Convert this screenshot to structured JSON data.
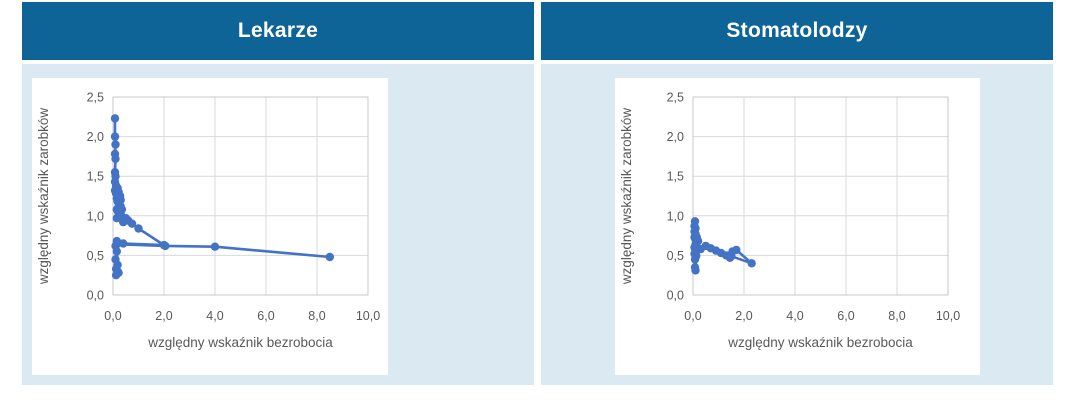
{
  "page": {
    "header_background": "#0e6496",
    "header_text_color": "#ffffff",
    "cell_background": "#dbe9f2",
    "panel_background": "#ffffff",
    "grid_color": "#d9d9d9",
    "plot_border_color": "#c9c9c9",
    "tick_color": "#595959",
    "axis_title_color": "#595959"
  },
  "panels": [
    {
      "title": "Lekarze"
    },
    {
      "title": "Stomatolodzy"
    }
  ],
  "chart_data": [
    {
      "type": "line",
      "title": "Lekarze",
      "xlabel": "względny wskaźnik bezrobocia",
      "ylabel": "względny wskaźnik zarobków",
      "xlim": [
        0,
        10
      ],
      "ylim": [
        0,
        2.5
      ],
      "x_tick_values": [
        0,
        2,
        4,
        6,
        8,
        10
      ],
      "x_ticks": [
        "0,0",
        "2,0",
        "4,0",
        "6,0",
        "8,0",
        "10,0"
      ],
      "y_tick_values": [
        0,
        0.5,
        1.0,
        1.5,
        2.0,
        2.5
      ],
      "y_ticks": [
        "0,0",
        "0,5",
        "1,0",
        "1,5",
        "2,0",
        "2,5"
      ],
      "grid": true,
      "legend": "none",
      "series_color": "#4472c4",
      "points": [
        [
          0.08,
          2.23
        ],
        [
          0.08,
          2.0
        ],
        [
          0.1,
          1.9
        ],
        [
          0.08,
          1.78
        ],
        [
          0.1,
          1.72
        ],
        [
          0.08,
          1.55
        ],
        [
          0.1,
          1.5
        ],
        [
          0.08,
          1.43
        ],
        [
          0.12,
          1.38
        ],
        [
          0.08,
          1.32
        ],
        [
          0.18,
          1.35
        ],
        [
          0.12,
          1.28
        ],
        [
          0.22,
          1.3
        ],
        [
          0.15,
          1.22
        ],
        [
          0.28,
          1.25
        ],
        [
          0.18,
          1.18
        ],
        [
          0.3,
          1.2
        ],
        [
          0.22,
          1.12
        ],
        [
          0.15,
          1.08
        ],
        [
          0.3,
          1.12
        ],
        [
          0.2,
          1.05
        ],
        [
          0.35,
          1.08
        ],
        [
          0.25,
          1.0
        ],
        [
          0.15,
          0.97
        ],
        [
          0.3,
          1.02
        ],
        [
          0.5,
          0.97
        ],
        [
          0.4,
          0.92
        ],
        [
          0.6,
          0.94
        ],
        [
          0.75,
          0.9
        ],
        [
          1.0,
          0.84
        ],
        [
          2.0,
          0.63
        ],
        [
          0.4,
          0.65
        ],
        [
          0.15,
          0.68
        ],
        [
          0.1,
          0.62
        ],
        [
          0.15,
          0.55
        ],
        [
          0.1,
          0.45
        ],
        [
          0.18,
          0.38
        ],
        [
          0.12,
          0.33
        ],
        [
          0.22,
          0.28
        ],
        [
          0.12,
          0.25
        ],
        [
          0.18,
          0.3
        ],
        [
          0.15,
          0.64
        ],
        [
          2.05,
          0.62
        ],
        [
          4.0,
          0.61
        ],
        [
          8.5,
          0.48
        ]
      ]
    },
    {
      "type": "line",
      "title": "Stomatolodzy",
      "xlabel": "względny wskaźnik bezrobocia",
      "ylabel": "względny wskaźnik zarobków",
      "xlim": [
        0,
        10
      ],
      "ylim": [
        0,
        2.5
      ],
      "x_tick_values": [
        0,
        2,
        4,
        6,
        8,
        10
      ],
      "x_ticks": [
        "0,0",
        "2,0",
        "4,0",
        "6,0",
        "8,0",
        "10,0"
      ],
      "y_tick_values": [
        0,
        0.5,
        1.0,
        1.5,
        2.0,
        2.5
      ],
      "y_ticks": [
        "0,0",
        "0,5",
        "1,0",
        "1,5",
        "2,0",
        "2,5"
      ],
      "grid": true,
      "legend": "none",
      "series_color": "#4472c4",
      "points": [
        [
          0.08,
          0.93
        ],
        [
          0.06,
          0.87
        ],
        [
          0.1,
          0.84
        ],
        [
          0.06,
          0.8
        ],
        [
          0.1,
          0.77
        ],
        [
          0.06,
          0.73
        ],
        [
          0.1,
          0.7
        ],
        [
          0.15,
          0.73
        ],
        [
          0.2,
          0.68
        ],
        [
          0.1,
          0.64
        ],
        [
          0.06,
          0.6
        ],
        [
          0.1,
          0.56
        ],
        [
          0.06,
          0.52
        ],
        [
          0.12,
          0.49
        ],
        [
          0.08,
          0.45
        ],
        [
          0.08,
          0.35
        ],
        [
          0.1,
          0.31
        ],
        [
          0.12,
          0.5
        ],
        [
          0.3,
          0.58
        ],
        [
          0.5,
          0.62
        ],
        [
          0.7,
          0.59
        ],
        [
          0.9,
          0.56
        ],
        [
          1.1,
          0.53
        ],
        [
          1.3,
          0.5
        ],
        [
          1.45,
          0.47
        ],
        [
          1.55,
          0.55
        ],
        [
          1.7,
          0.57
        ],
        [
          2.3,
          0.4
        ],
        [
          1.5,
          0.49
        ]
      ]
    }
  ]
}
